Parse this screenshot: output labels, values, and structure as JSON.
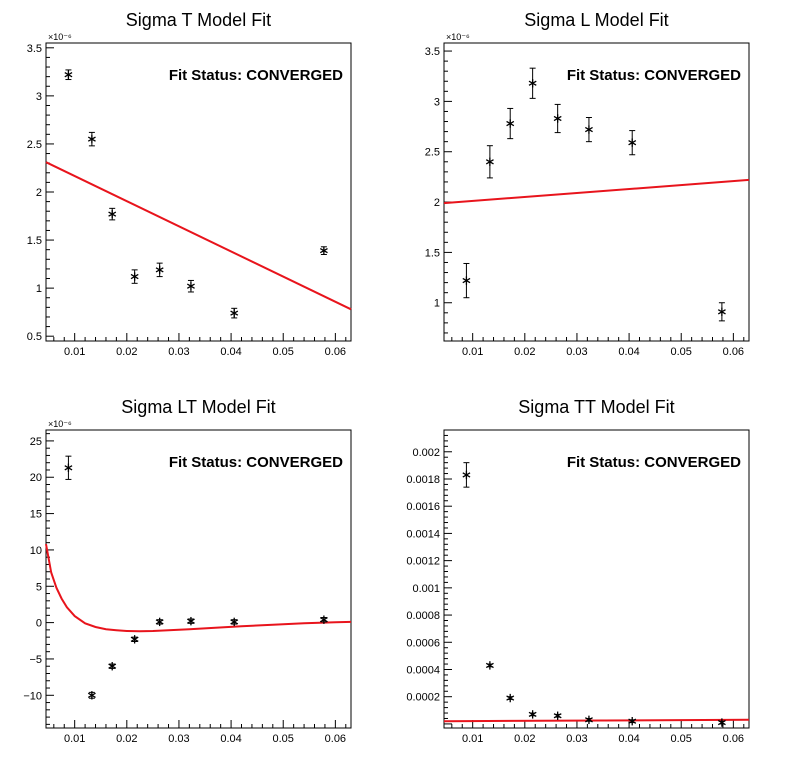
{
  "chart_data": [
    {
      "type": "scatter",
      "title": "Sigma T Model Fit",
      "annotation": "Fit Status: CONVERGED",
      "exponent_label": "×10⁻⁶",
      "xlim": [
        0.0045,
        0.063
      ],
      "ylim": [
        0.45,
        3.55
      ],
      "xticks": [
        0.01,
        0.02,
        0.03,
        0.04,
        0.05,
        0.06
      ],
      "xtick_labels": [
        "0.01",
        "0.02",
        "0.03",
        "0.04",
        "0.05",
        "0.06"
      ],
      "yticks": [
        0.5,
        1,
        1.5,
        2,
        2.5,
        3,
        3.5
      ],
      "ytick_labels": [
        "0.5",
        "1",
        "1.5",
        "2",
        "2.5",
        "3",
        "3.5"
      ],
      "points": [
        {
          "x": 0.0088,
          "y": 3.22,
          "err": 0.05
        },
        {
          "x": 0.0133,
          "y": 2.55,
          "err": 0.07
        },
        {
          "x": 0.0172,
          "y": 1.77,
          "err": 0.06
        },
        {
          "x": 0.0215,
          "y": 1.12,
          "err": 0.07
        },
        {
          "x": 0.0263,
          "y": 1.19,
          "err": 0.07
        },
        {
          "x": 0.0323,
          "y": 1.02,
          "err": 0.06
        },
        {
          "x": 0.0406,
          "y": 0.74,
          "err": 0.05
        },
        {
          "x": 0.0578,
          "y": 1.39,
          "err": 0.04
        }
      ],
      "fit_curve": {
        "x": [
          0.0045,
          0.063
        ],
        "y": [
          2.31,
          0.78
        ]
      }
    },
    {
      "type": "scatter",
      "title": "Sigma L Model Fit",
      "annotation": "Fit Status: CONVERGED",
      "exponent_label": "×10⁻⁶",
      "xlim": [
        0.0045,
        0.063
      ],
      "ylim": [
        0.62,
        3.58
      ],
      "xticks": [
        0.01,
        0.02,
        0.03,
        0.04,
        0.05,
        0.06
      ],
      "xtick_labels": [
        "0.01",
        "0.02",
        "0.03",
        "0.04",
        "0.05",
        "0.06"
      ],
      "yticks": [
        1,
        1.5,
        2,
        2.5,
        3,
        3.5
      ],
      "ytick_labels": [
        "1",
        "1.5",
        "2",
        "2.5",
        "3",
        "3.5"
      ],
      "points": [
        {
          "x": 0.0088,
          "y": 1.22,
          "err": 0.17
        },
        {
          "x": 0.0133,
          "y": 2.4,
          "err": 0.16
        },
        {
          "x": 0.0172,
          "y": 2.78,
          "err": 0.15
        },
        {
          "x": 0.0215,
          "y": 3.18,
          "err": 0.15
        },
        {
          "x": 0.0263,
          "y": 2.83,
          "err": 0.14
        },
        {
          "x": 0.0323,
          "y": 2.72,
          "err": 0.12
        },
        {
          "x": 0.0406,
          "y": 2.59,
          "err": 0.12
        },
        {
          "x": 0.0578,
          "y": 0.91,
          "err": 0.09
        }
      ],
      "fit_curve": {
        "x": [
          0.0045,
          0.063
        ],
        "y": [
          1.99,
          2.22
        ]
      }
    },
    {
      "type": "scatter",
      "title": "Sigma LT Model Fit",
      "annotation": "Fit Status: CONVERGED",
      "exponent_label": "×10⁻⁶",
      "xlim": [
        0.0045,
        0.063
      ],
      "ylim": [
        -14.5,
        26.5
      ],
      "xticks": [
        0.01,
        0.02,
        0.03,
        0.04,
        0.05,
        0.06
      ],
      "xtick_labels": [
        "0.01",
        "0.02",
        "0.03",
        "0.04",
        "0.05",
        "0.06"
      ],
      "yticks": [
        -10,
        -5,
        0,
        5,
        10,
        15,
        20,
        25
      ],
      "ytick_labels": [
        "−10",
        "−5",
        "0",
        "5",
        "10",
        "15",
        "20",
        "25"
      ],
      "points": [
        {
          "x": 0.0088,
          "y": 21.3,
          "err": 1.6
        },
        {
          "x": 0.0133,
          "y": -10.0,
          "err": 0.4
        },
        {
          "x": 0.0172,
          "y": -6.0,
          "err": 0.3
        },
        {
          "x": 0.0215,
          "y": -2.3,
          "err": 0.3
        },
        {
          "x": 0.0263,
          "y": 0.1,
          "err": 0.3
        },
        {
          "x": 0.0323,
          "y": 0.2,
          "err": 0.3
        },
        {
          "x": 0.0406,
          "y": 0.1,
          "err": 0.3
        },
        {
          "x": 0.0578,
          "y": 0.4,
          "err": 0.3
        }
      ],
      "fit_curve": {
        "x": [
          0.0045,
          0.0055,
          0.0065,
          0.0075,
          0.0085,
          0.01,
          0.012,
          0.014,
          0.016,
          0.018,
          0.02,
          0.0225,
          0.025,
          0.028,
          0.032,
          0.037,
          0.042,
          0.048,
          0.054,
          0.06,
          0.063
        ],
        "y": [
          10.8,
          6.9,
          4.8,
          3.3,
          2.1,
          0.9,
          -0.1,
          -0.6,
          -0.9,
          -1.05,
          -1.15,
          -1.2,
          -1.15,
          -1.05,
          -0.9,
          -0.7,
          -0.5,
          -0.3,
          -0.1,
          0.05,
          0.1
        ]
      }
    },
    {
      "type": "scatter",
      "title": "Sigma TT Model Fit",
      "annotation": "Fit Status: CONVERGED",
      "exponent_label": "",
      "xlim": [
        0.0045,
        0.063
      ],
      "ylim": [
        -3e-05,
        0.00216
      ],
      "xticks": [
        0.01,
        0.02,
        0.03,
        0.04,
        0.05,
        0.06
      ],
      "xtick_labels": [
        "0.01",
        "0.02",
        "0.03",
        "0.04",
        "0.05",
        "0.06"
      ],
      "yticks": [
        0.0002,
        0.0004,
        0.0006,
        0.0008,
        0.001,
        0.0012,
        0.0014,
        0.0016,
        0.0018,
        0.002
      ],
      "ytick_labels": [
        "0.0002",
        "0.0004",
        "0.0006",
        "0.0008",
        "0.001",
        "0.0012",
        "0.0014",
        "0.0016",
        "0.0018",
        "0.002"
      ],
      "points": [
        {
          "x": 0.0088,
          "y": 0.00183,
          "err": 9e-05
        },
        {
          "x": 0.0133,
          "y": 0.00043,
          "err": 1e-05
        },
        {
          "x": 0.0172,
          "y": 0.00019,
          "err": 1e-05
        },
        {
          "x": 0.0215,
          "y": 7e-05,
          "err": 1e-05
        },
        {
          "x": 0.0263,
          "y": 6e-05,
          "err": 1e-05
        },
        {
          "x": 0.0323,
          "y": 3e-05,
          "err": 1e-05
        },
        {
          "x": 0.0406,
          "y": 2e-05,
          "err": 1e-05
        },
        {
          "x": 0.0578,
          "y": 1e-05,
          "err": 1e-05
        }
      ],
      "fit_curve": {
        "x": [
          0.0045,
          0.063
        ],
        "y": [
          2e-05,
          3e-05
        ]
      }
    }
  ],
  "colors": {
    "fit": "#e8141c",
    "marker": "#000000",
    "axis": "#000000",
    "background": "#ffffff"
  }
}
